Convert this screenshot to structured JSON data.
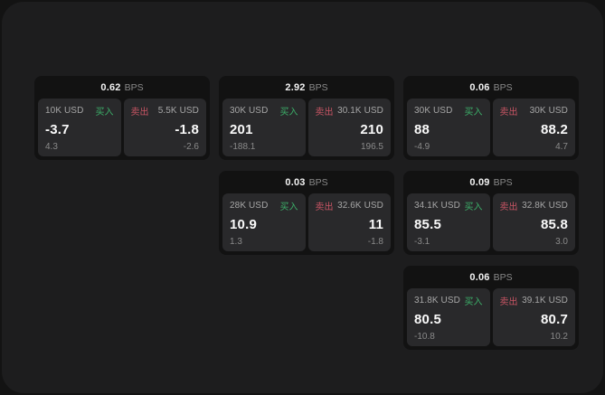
{
  "labels": {
    "bps": "BPS",
    "buy": "买入",
    "sell": "卖出"
  },
  "colors": {
    "buy-green": "#3caf69",
    "sell-red": "#c85564"
  },
  "cards": [
    {
      "bps": "0.62",
      "buy": {
        "amount": "10K USD",
        "value": "-3.7",
        "delta": "4.3"
      },
      "sell": {
        "amount": "5.5K USD",
        "value": "-1.8",
        "delta": "-2.6"
      }
    },
    {
      "bps": "2.92",
      "buy": {
        "amount": "30K USD",
        "value": "201",
        "delta": "-188.1"
      },
      "sell": {
        "amount": "30.1K USD",
        "value": "210",
        "delta": "196.5"
      }
    },
    {
      "bps": "0.06",
      "buy": {
        "amount": "30K USD",
        "value": "88",
        "delta": "-4.9"
      },
      "sell": {
        "amount": "30K USD",
        "value": "88.2",
        "delta": "4.7"
      }
    },
    {
      "bps": "0.03",
      "buy": {
        "amount": "28K USD",
        "value": "10.9",
        "delta": "1.3"
      },
      "sell": {
        "amount": "32.6K USD",
        "value": "11",
        "delta": "-1.8"
      }
    },
    {
      "bps": "0.09",
      "buy": {
        "amount": "34.1K USD",
        "value": "85.5",
        "delta": "-3.1"
      },
      "sell": {
        "amount": "32.8K USD",
        "value": "85.8",
        "delta": "3.0"
      }
    },
    {
      "bps": "0.06",
      "buy": {
        "amount": "31.8K USD",
        "value": "80.5",
        "delta": "-10.8"
      },
      "sell": {
        "amount": "39.1K USD",
        "value": "80.7",
        "delta": "10.2"
      }
    }
  ]
}
